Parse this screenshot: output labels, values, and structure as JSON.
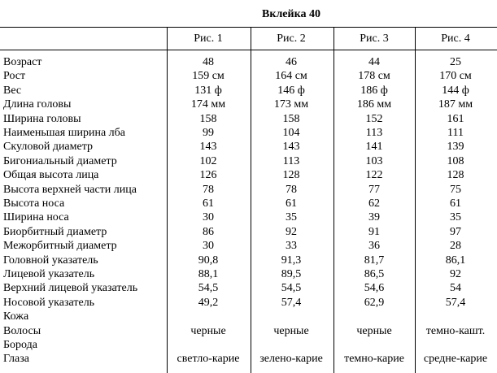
{
  "header": {
    "title": "Вклейка 40"
  },
  "table": {
    "columns": [
      "Рис. 1",
      "Рис. 2",
      "Рис. 3",
      "Рис. 4"
    ],
    "rows": [
      {
        "label": "Возраст",
        "cells": [
          "48",
          "46",
          "44",
          "25"
        ]
      },
      {
        "label": "Рост",
        "cells": [
          "159 см",
          "164 см",
          "178 см",
          "170 см"
        ]
      },
      {
        "label": "Вес",
        "cells": [
          "131 ф",
          "146 ф",
          "186 ф",
          "144 ф"
        ]
      },
      {
        "label": "Длина головы",
        "cells": [
          "174 мм",
          "173 мм",
          "186 мм",
          "187 мм"
        ]
      },
      {
        "label": "Ширина головы",
        "cells": [
          "158",
          "158",
          "152",
          "161"
        ]
      },
      {
        "label": "Наименьшая ширина лба",
        "cells": [
          "99",
          "104",
          "113",
          "111"
        ]
      },
      {
        "label": "Скуловой диаметр",
        "cells": [
          "143",
          "143",
          "141",
          "139"
        ]
      },
      {
        "label": "Бигониальный диаметр",
        "cells": [
          "102",
          "113",
          "103",
          "108"
        ]
      },
      {
        "label": "Общая высота лица",
        "cells": [
          "126",
          "128",
          "122",
          "128"
        ]
      },
      {
        "label": "Высота верхней части лица",
        "cells": [
          "78",
          "78",
          "77",
          "75"
        ]
      },
      {
        "label": "Высота носа",
        "cells": [
          "61",
          "61",
          "62",
          "61"
        ]
      },
      {
        "label": "Ширина носа",
        "cells": [
          "30",
          "35",
          "39",
          "35"
        ]
      },
      {
        "label": "Биорбитный диаметр",
        "cells": [
          "86",
          "92",
          "91",
          "97"
        ]
      },
      {
        "label": "Межорбитный диаметр",
        "cells": [
          "30",
          "33",
          "36",
          "28"
        ]
      },
      {
        "label": "Головной указатель",
        "cells": [
          "90,8",
          "91,3",
          "81,7",
          "86,1"
        ]
      },
      {
        "label": "Лицевой указатель",
        "cells": [
          "88,1",
          "89,5",
          "86,5",
          "92"
        ]
      },
      {
        "label": "Верхний лицевой указатель",
        "cells": [
          "54,5",
          "54,5",
          "54,6",
          "54"
        ]
      },
      {
        "label": "Носовой указатель",
        "cells": [
          "49,2",
          "57,4",
          "62,9",
          "57,4"
        ]
      },
      {
        "label": "Кожа",
        "cells": [
          null,
          null,
          null,
          null
        ]
      },
      {
        "label": "Волосы",
        "cells": [
          "черные",
          "черные",
          "черные",
          "темно-кашт."
        ]
      },
      {
        "label": "Борода",
        "cells": [
          null,
          null,
          null,
          null
        ]
      },
      {
        "label": "Глаза",
        "cells": [
          "светло-карие",
          "зелено-карие",
          "темно-карие",
          "средне-карие"
        ]
      }
    ]
  }
}
